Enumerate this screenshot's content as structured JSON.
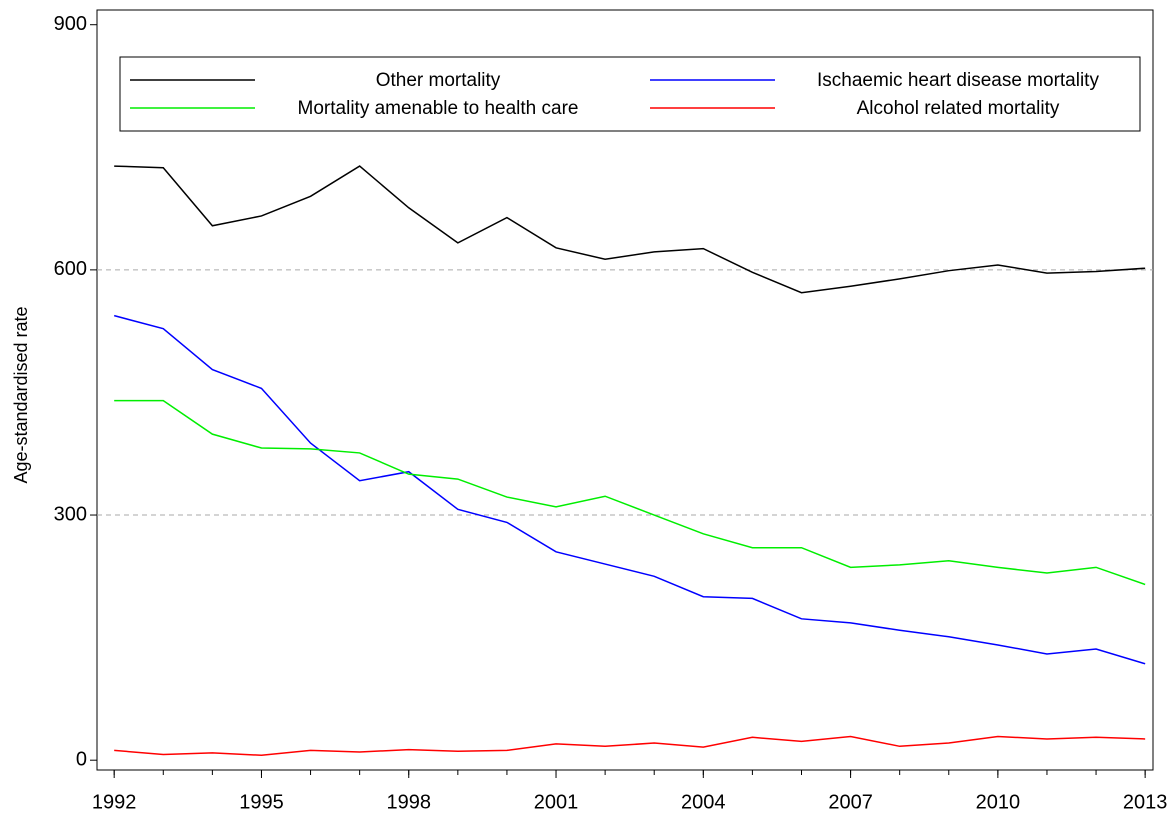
{
  "chart_data": {
    "type": "line",
    "y_label": "Age-standardised rate",
    "x": [
      1992,
      1993,
      1994,
      1995,
      1996,
      1997,
      1998,
      1999,
      2000,
      2001,
      2002,
      2003,
      2004,
      2005,
      2006,
      2007,
      2008,
      2009,
      2010,
      2011,
      2012,
      2013
    ],
    "series": [
      {
        "name": "Other mortality",
        "color": "#000000",
        "values": [
          727,
          725,
          654,
          666,
          690,
          727,
          676,
          633,
          664,
          627,
          613,
          622,
          626,
          597,
          572,
          580,
          589,
          599,
          606,
          596,
          598,
          602
        ]
      },
      {
        "name": "Ischaemic heart disease mortality",
        "color": "#0000ff",
        "values": [
          544,
          528,
          478,
          455,
          388,
          342,
          353,
          307,
          291,
          255,
          240,
          225,
          200,
          198,
          173,
          168,
          159,
          151,
          141,
          130,
          136,
          118
        ]
      },
      {
        "name": "Mortality amenable to health care",
        "color": "#00ee00",
        "values": [
          440,
          440,
          399,
          382,
          381,
          376,
          350,
          344,
          322,
          310,
          323,
          300,
          277,
          260,
          260,
          236,
          239,
          244,
          236,
          229,
          236,
          215
        ]
      },
      {
        "name": "Alcohol related mortality",
        "color": "#ff0000",
        "values": [
          12,
          7,
          9,
          6,
          12,
          10,
          13,
          11,
          12,
          20,
          17,
          21,
          16,
          28,
          23,
          29,
          17,
          21,
          29,
          26,
          28,
          26
        ]
      }
    ],
    "xlim": [
      1991.65,
      2013.16
    ],
    "ylim": [
      -12,
      918
    ],
    "xticks": [
      1992,
      1995,
      1998,
      2001,
      2004,
      2007,
      2010,
      2013
    ],
    "yticks": [
      0,
      300,
      600,
      900
    ],
    "grid": true,
    "legend": "top"
  }
}
